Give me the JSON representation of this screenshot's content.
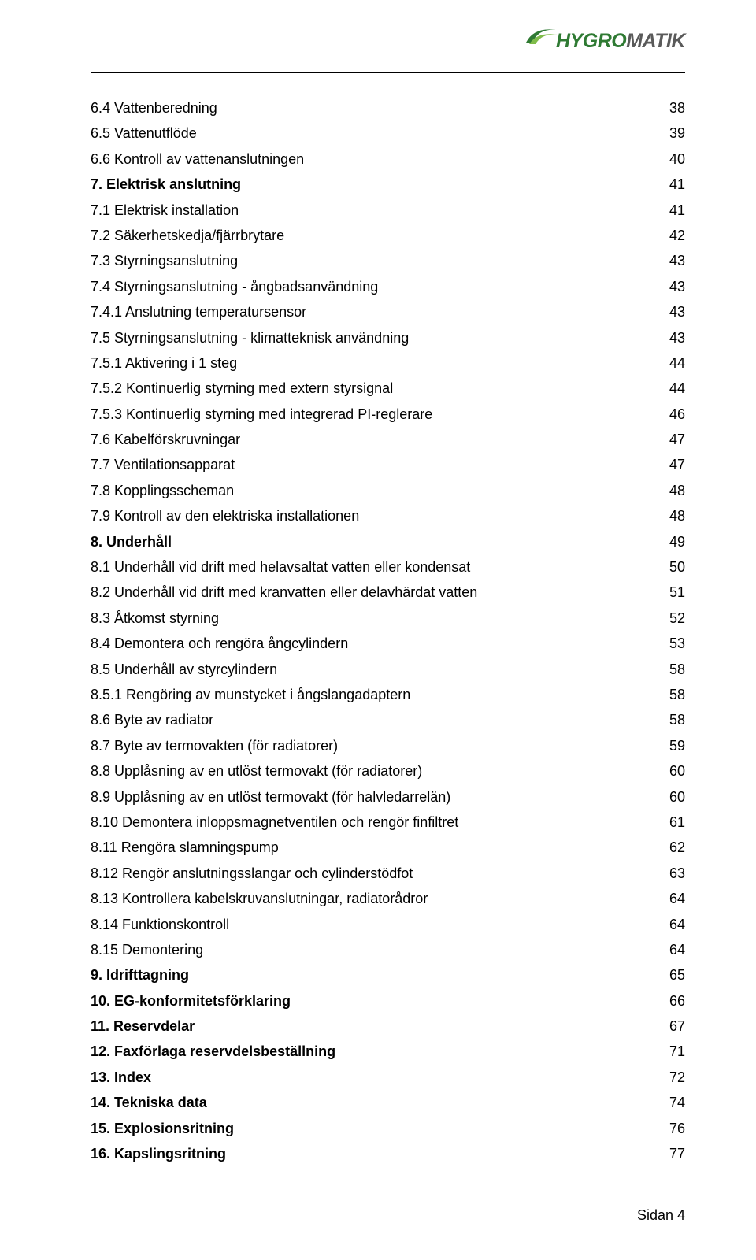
{
  "logo": {
    "part1": "HYGRO",
    "part2": "MATIK",
    "color1": "#2f7a33",
    "color2": "#5a5a5a"
  },
  "toc": [
    {
      "label": "6.4 Vattenberedning",
      "page": "38",
      "bold": false
    },
    {
      "label": "6.5 Vattenutflöde",
      "page": "39",
      "bold": false
    },
    {
      "label": "6.6 Kontroll av vattenanslutningen",
      "page": "40",
      "bold": false
    },
    {
      "label": "7. Elektrisk anslutning",
      "page": "41",
      "bold": true
    },
    {
      "label": "7.1 Elektrisk installation",
      "page": "41",
      "bold": false
    },
    {
      "label": "7.2 Säkerhetskedja/fjärrbrytare",
      "page": "42",
      "bold": false
    },
    {
      "label": "7.3 Styrningsanslutning",
      "page": "43",
      "bold": false
    },
    {
      "label": "7.4 Styrningsanslutning - ångbadsanvändning",
      "page": "43",
      "bold": false
    },
    {
      "label": "7.4.1 Anslutning temperatursensor",
      "page": "43",
      "bold": false
    },
    {
      "label": "7.5 Styrningsanslutning - klimatteknisk användning",
      "page": "43",
      "bold": false
    },
    {
      "label": "7.5.1 Aktivering i 1 steg",
      "page": "44",
      "bold": false
    },
    {
      "label": "7.5.2 Kontinuerlig styrning med extern styrsignal",
      "page": "44",
      "bold": false
    },
    {
      "label": "7.5.3 Kontinuerlig styrning med integrerad PI-reglerare",
      "page": "46",
      "bold": false
    },
    {
      "label": "7.6 Kabelförskruvningar",
      "page": "47",
      "bold": false
    },
    {
      "label": "7.7 Ventilationsapparat",
      "page": "47",
      "bold": false
    },
    {
      "label": "7.8 Kopplingsscheman",
      "page": "48",
      "bold": false
    },
    {
      "label": "7.9 Kontroll av den elektriska installationen",
      "page": "48",
      "bold": false
    },
    {
      "label": "8. Underhåll",
      "page": "49",
      "bold": true
    },
    {
      "label": "8.1 Underhåll vid drift med helavsaltat vatten eller kondensat",
      "page": "50",
      "bold": false
    },
    {
      "label": "8.2 Underhåll vid drift med kranvatten eller delavhärdat vatten",
      "page": "51",
      "bold": false
    },
    {
      "label": "8.3 Åtkomst styrning",
      "page": "52",
      "bold": false
    },
    {
      "label": "8.4 Demontera och rengöra ångcylindern",
      "page": "53",
      "bold": false
    },
    {
      "label": "8.5 Underhåll av styrcylindern",
      "page": "58",
      "bold": false
    },
    {
      "label": "8.5.1 Rengöring av munstycket i ångslangadaptern",
      "page": "58",
      "bold": false
    },
    {
      "label": "8.6 Byte av radiator",
      "page": "58",
      "bold": false
    },
    {
      "label": "8.7 Byte av termovakten (för radiatorer)",
      "page": "59",
      "bold": false
    },
    {
      "label": "8.8 Upplåsning av en utlöst termovakt (för radiatorer)",
      "page": "60",
      "bold": false
    },
    {
      "label": "8.9 Upplåsning av en utlöst termovakt (för halvledarrelän)",
      "page": "60",
      "bold": false
    },
    {
      "label": "8.10 Demontera inloppsmagnetventilen och rengör finfiltret",
      "page": "61",
      "bold": false
    },
    {
      "label": "8.11 Rengöra slamningspump",
      "page": "62",
      "bold": false
    },
    {
      "label": "8.12 Rengör anslutningsslangar och cylinderstödfot",
      "page": "63",
      "bold": false
    },
    {
      "label": "8.13 Kontrollera kabelskruvanslutningar, radiatorådror",
      "page": "64",
      "bold": false
    },
    {
      "label": "8.14 Funktionskontroll",
      "page": "64",
      "bold": false
    },
    {
      "label": "8.15 Demontering",
      "page": "64",
      "bold": false
    },
    {
      "label": "9. Idrifttagning",
      "page": "65",
      "bold": true
    },
    {
      "label": "10. EG-konformitetsförklaring",
      "page": "66",
      "bold": true
    },
    {
      "label": "11. Reservdelar",
      "page": "67",
      "bold": true
    },
    {
      "label": "12. Faxförlaga reservdelsbeställning",
      "page": "71",
      "bold": true
    },
    {
      "label": "13. Index",
      "page": "72",
      "bold": true
    },
    {
      "label": "14. Tekniska data",
      "page": "74",
      "bold": true
    },
    {
      "label": "15. Explosionsritning",
      "page": "76",
      "bold": true
    },
    {
      "label": "16. Kapslingsritning",
      "page": "77",
      "bold": true
    }
  ],
  "footer": "Sidan 4"
}
